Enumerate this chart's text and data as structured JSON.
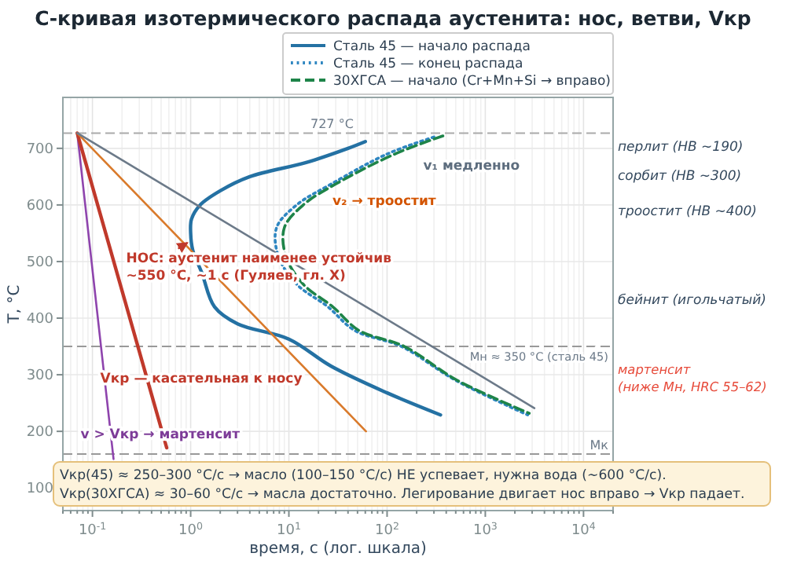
{
  "chart_data": {
    "type": "line",
    "title": "С-кривая изотермического распада аустенита: нос, ветви, Vкр",
    "xlabel": "время, с (лог. шкала)",
    "ylabel": "T, °C",
    "log": "x",
    "xlim": [
      0.05,
      20000
    ],
    "ylim": [
      60,
      790
    ],
    "xticks": [
      {
        "value": 0.05,
        "label": null
      },
      {
        "value": 0.06,
        "label": null
      },
      {
        "value": 0.07,
        "label": null
      },
      {
        "value": 0.08,
        "label": null
      },
      {
        "value": 0.09,
        "label": null
      },
      {
        "value": 0.1,
        "label": "10$^{-1}$"
      },
      {
        "value": 0.2,
        "label": null
      },
      {
        "value": 0.3,
        "label": null
      },
      {
        "value": 0.4,
        "label": null
      },
      {
        "value": 0.5,
        "label": null
      },
      {
        "value": 0.6,
        "label": null
      },
      {
        "value": 0.7,
        "label": null
      },
      {
        "value": 0.8,
        "label": null
      },
      {
        "value": 0.9,
        "label": null
      },
      {
        "value": 1,
        "label": "10$^{0}$"
      },
      {
        "value": 2,
        "label": null
      },
      {
        "value": 3,
        "label": null
      },
      {
        "value": 4,
        "label": null
      },
      {
        "value": 5,
        "label": null
      },
      {
        "value": 6,
        "label": null
      },
      {
        "value": 7,
        "label": null
      },
      {
        "value": 8,
        "label": null
      },
      {
        "value": 9,
        "label": null
      },
      {
        "value": 10,
        "label": "10$^{1}$"
      },
      {
        "value": 20,
        "label": null
      },
      {
        "value": 30,
        "label": null
      },
      {
        "value": 40,
        "label": null
      },
      {
        "value": 50,
        "label": null
      },
      {
        "value": 60,
        "label": null
      },
      {
        "value": 70,
        "label": null
      },
      {
        "value": 80,
        "label": null
      },
      {
        "value": 90,
        "label": null
      },
      {
        "value": 100,
        "label": "10$^{2}$"
      },
      {
        "value": 200,
        "label": null
      },
      {
        "value": 300,
        "label": null
      },
      {
        "value": 400,
        "label": null
      },
      {
        "value": 500,
        "label": null
      },
      {
        "value": 600,
        "label": null
      },
      {
        "value": 700,
        "label": null
      },
      {
        "value": 800,
        "label": null
      },
      {
        "value": 900,
        "label": null
      },
      {
        "value": 1000,
        "label": "10$^{3}$"
      },
      {
        "value": 2000,
        "label": null
      },
      {
        "value": 3000,
        "label": null
      },
      {
        "value": 4000,
        "label": null
      },
      {
        "value": 5000,
        "label": null
      },
      {
        "value": 6000,
        "label": null
      },
      {
        "value": 7000,
        "label": null
      },
      {
        "value": 8000,
        "label": null
      },
      {
        "value": 9000,
        "label": null
      },
      {
        "value": 10000,
        "label": "10$^{4}$"
      },
      {
        "value": 20000,
        "label": null
      }
    ],
    "yticks": [
      100,
      200,
      300,
      400,
      500,
      600,
      700
    ],
    "grid": true,
    "legend": "top right",
    "series": [
      {
        "name": "Сталь 45 — начало распада",
        "color": "#2471a3",
        "line_style": "solid",
        "x": [
          60,
          40,
          15,
          4,
          2,
          1.25,
          1.02,
          1.0,
          1.05,
          1.3,
          1.75,
          3,
          10,
          27,
          100,
          350
        ],
        "values": [
          712,
          700,
          675,
          650,
          625,
          600,
          575,
          550,
          520,
          480,
          420,
          390,
          363,
          315,
          268,
          229
        ]
      },
      {
        "name": "Сталь 45 — конец распада",
        "color": "#2e86c1",
        "line_style": "dotted",
        "x": [
          300,
          100,
          27,
          12,
          7.5,
          7.8,
          12,
          25,
          47,
          140,
          500,
          2700
        ],
        "values": [
          720,
          690,
          637,
          600,
          560,
          510,
          460,
          420,
          378,
          350,
          290,
          229
        ]
      },
      {
        "name": "30ХГСА — начало (Cr+Mn+Si → вправо)",
        "color": "#1e8449",
        "line_style": "dashed",
        "x": [
          370,
          120,
          30,
          14,
          9,
          9.3,
          14,
          28,
          52,
          150,
          520,
          2800
        ],
        "values": [
          722,
          690,
          637,
          600,
          560,
          510,
          460,
          420,
          378,
          350,
          290,
          232
        ]
      },
      {
        "color": "#8e44ad",
        "line_style": "solid",
        "x": [
          0.07,
          0.164
        ],
        "values": [
          727,
          151
        ]
      },
      {
        "color": "#c0392b",
        "line_style": "solid",
        "x": [
          0.07,
          0.57
        ],
        "values": [
          727,
          171
        ]
      },
      {
        "color": "#d97a2b",
        "line_style": "solid",
        "x": [
          0.07,
          61
        ],
        "values": [
          727,
          200
        ]
      },
      {
        "color": "#6c7a89",
        "line_style": "solid",
        "x": [
          0.07,
          3162
        ],
        "values": [
          727,
          241
        ]
      }
    ],
    "ref_lines": [
      {
        "axis": "y",
        "value": 727,
        "label": "727 °C",
        "color": "#aaaaaa",
        "line_style": "dashed"
      },
      {
        "axis": "y",
        "value": 350,
        "label": "Мн ≈ 350 °C (сталь 45)",
        "color": "#999999",
        "line_style": "dashed"
      },
      {
        "axis": "y",
        "value": 160,
        "label": "Мк",
        "color": "#999999",
        "line_style": "dashed"
      }
    ],
    "annotations": [
      {
        "text": "НОС: аустенит наименее устойчив\n~550 °C, ~1 с (Гуляев, гл. X)",
        "x": 1,
        "y": 550
      },
      "v₂ → троостит",
      "Vкр — касательная к носу",
      "v > Vкр → мартенсит",
      "v₁ медленно",
      "перлит (НВ ~190)",
      "сорбит (НВ ~300)",
      "троостит (НВ ~400)",
      "бейнит (игольчатый)",
      "мартенсит\n(ниже Мн, HRC 55–62)",
      "Vкр(45) ≈ 250–300 °C/с → масло (100–150 °C/с) НЕ успевает, нужна вода (~600 °C/с).\nVкр(30ХГСА) ≈ 30–60 °C/с → масла достаточно. Легирование двигает нос вправо → Vкр падает."
    ]
  }
}
